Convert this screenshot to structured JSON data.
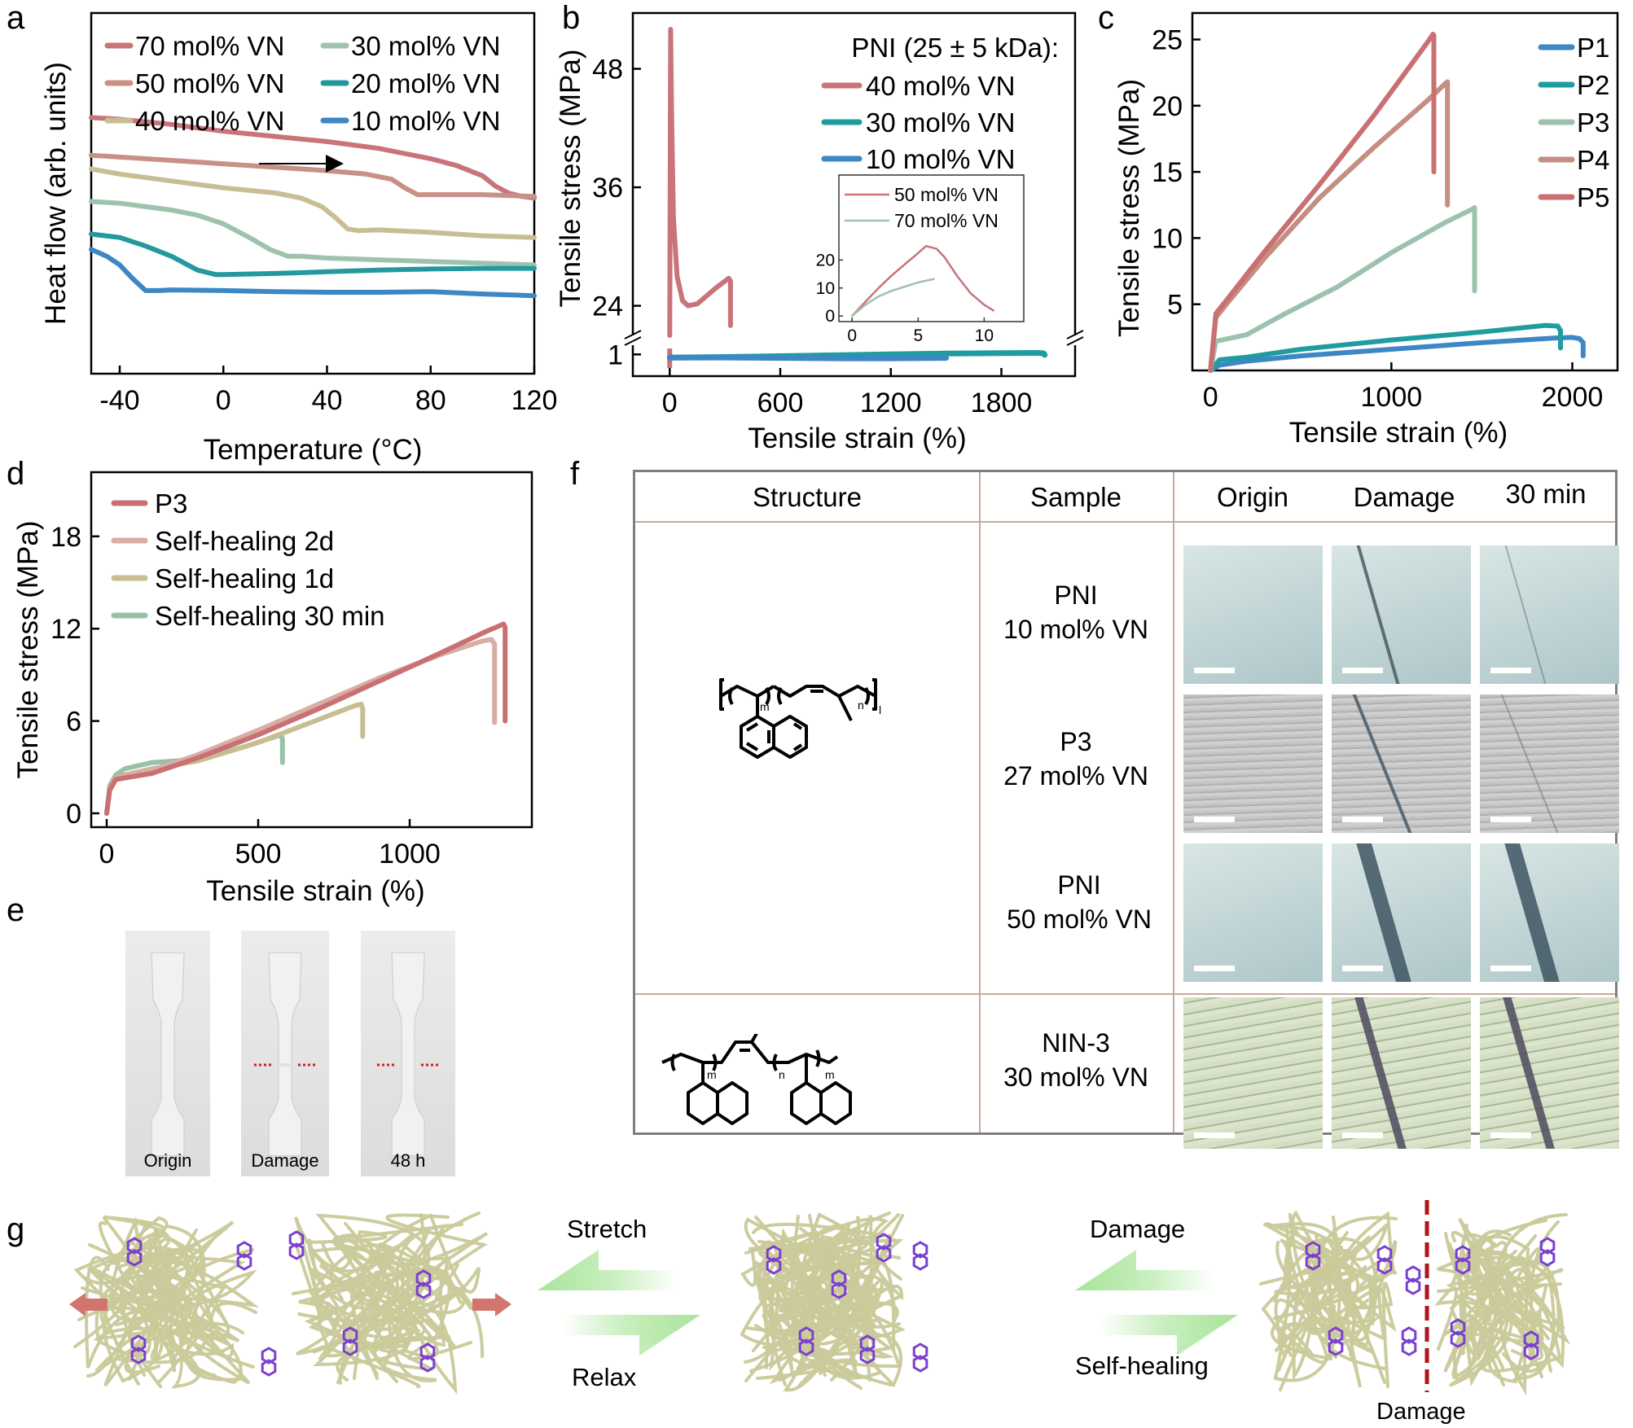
{
  "figure": {
    "panel_labels": [
      "a",
      "b",
      "c",
      "d",
      "e",
      "f",
      "g"
    ]
  },
  "chart_data": [
    {
      "id": "a",
      "type": "line",
      "title": "",
      "xlabel": "Temperature (°C)",
      "ylabel": "Heat flow (arb. units)",
      "xlim": [
        -51,
        120
      ],
      "ylim": [
        0,
        10
      ],
      "xticks": [
        -40,
        0,
        40,
        80,
        120
      ],
      "yticks": [],
      "grid": false,
      "legend_position": "top",
      "annotation": "heating direction arrow →",
      "series": [
        {
          "name": "70 mol% VN",
          "color": "#c9737a",
          "x": [
            -51,
            -40,
            -20,
            0,
            20,
            40,
            60,
            80,
            90,
            100,
            105,
            110,
            115,
            120
          ],
          "y": [
            7.0,
            6.95,
            6.8,
            6.6,
            6.45,
            6.3,
            6.1,
            5.8,
            5.6,
            5.3,
            5.0,
            4.8,
            4.7,
            4.65
          ]
        },
        {
          "name": "50 mol% VN",
          "color": "#c99085",
          "x": [
            -51,
            -20,
            0,
            20,
            40,
            55,
            65,
            70,
            75,
            80,
            100,
            120
          ],
          "y": [
            5.9,
            5.75,
            5.65,
            5.55,
            5.45,
            5.35,
            5.2,
            4.95,
            4.75,
            4.75,
            4.75,
            4.7
          ]
        },
        {
          "name": "40 mol% VN",
          "color": "#c9bd94",
          "x": [
            -51,
            -40,
            -20,
            0,
            20,
            30,
            38,
            43,
            48,
            52,
            60,
            80,
            100,
            120
          ],
          "y": [
            5.5,
            5.35,
            5.15,
            4.95,
            4.8,
            4.65,
            4.4,
            4.1,
            3.75,
            3.7,
            3.72,
            3.65,
            3.55,
            3.5
          ]
        },
        {
          "name": "30 mol% VN",
          "color": "#9dc3ae",
          "x": [
            -51,
            -40,
            -20,
            -10,
            0,
            10,
            18,
            25,
            30,
            40,
            60,
            80,
            100,
            120
          ],
          "y": [
            4.55,
            4.5,
            4.3,
            4.15,
            3.9,
            3.5,
            3.15,
            2.95,
            2.95,
            2.9,
            2.85,
            2.8,
            2.75,
            2.7
          ]
        },
        {
          "name": "20 mol% VN",
          "color": "#23999e",
          "x": [
            -51,
            -40,
            -30,
            -20,
            -10,
            -3,
            0,
            20,
            40,
            60,
            80,
            100,
            120
          ],
          "y": [
            3.6,
            3.5,
            3.25,
            2.95,
            2.55,
            2.42,
            2.42,
            2.45,
            2.5,
            2.55,
            2.58,
            2.6,
            2.6
          ]
        },
        {
          "name": "10 mol% VN",
          "color": "#3d87c4",
          "x": [
            -51,
            -45,
            -40,
            -35,
            -30,
            -25,
            -20,
            0,
            20,
            40,
            60,
            80,
            100,
            120
          ],
          "y": [
            3.15,
            2.95,
            2.7,
            2.3,
            1.95,
            1.95,
            1.97,
            1.95,
            1.92,
            1.9,
            1.9,
            1.92,
            1.85,
            1.8
          ]
        }
      ]
    },
    {
      "id": "b",
      "type": "line",
      "title": "",
      "xlabel": "Tensile strain (%)",
      "ylabel": "Tensile stress (MPa)",
      "xlim": [
        -200,
        2200
      ],
      "xticks": [
        0,
        600,
        1200,
        1800
      ],
      "yticks_lower": [
        1
      ],
      "yticks_upper": [
        24,
        36,
        48
      ],
      "axis_break": "between 1 and 24 MPa",
      "ylim_lower": [
        0,
        1.5
      ],
      "ylim_upper": [
        21,
        52
      ],
      "grid": false,
      "legend_title": "PNI (25 ± 5 kDa):",
      "legend_position": "top-right",
      "series": [
        {
          "name": "40 mol% VN",
          "color": "#c9737a",
          "x": [
            0,
            5,
            10,
            20,
            40,
            70,
            100,
            150,
            200,
            250,
            300,
            320,
            330,
            330
          ],
          "y": [
            21,
            52,
            44,
            33,
            27,
            24.5,
            24,
            24.2,
            25,
            25.8,
            26.5,
            26.8,
            26.5,
            22
          ]
        },
        {
          "name": "30 mol% VN",
          "color": "#1f9ca0",
          "x": [
            0,
            300,
            600,
            900,
            1200,
            1500,
            1800,
            2000,
            2030,
            2035
          ],
          "y": [
            0.85,
            0.88,
            0.92,
            0.96,
            1.0,
            1.04,
            1.06,
            1.07,
            1.05,
            0.98
          ]
        },
        {
          "name": "10 mol% VN",
          "color": "#3d87c4",
          "x": [
            0,
            300,
            600,
            900,
            1200,
            1500
          ],
          "y": [
            0.85,
            0.86,
            0.84,
            0.82,
            0.82,
            0.84
          ]
        }
      ],
      "inset": {
        "type": "line",
        "xlim": [
          -1,
          13
        ],
        "ylim": [
          -2,
          30
        ],
        "xticks": [
          0,
          5,
          10
        ],
        "yticks": [
          0,
          10,
          20
        ],
        "series": [
          {
            "name": "50 mol% VN",
            "color": "#c9737a",
            "x": [
              0,
              1,
              2,
              3,
              4,
              5,
              5.6,
              6.4,
              7,
              8,
              9,
              10,
              10.7
            ],
            "y": [
              0,
              5,
              10,
              14.5,
              18.5,
              22.5,
              25,
              24,
              21,
              14,
              8,
              4,
              2
            ]
          },
          {
            "name": "70 mol% VN",
            "color": "#9dc3ae",
            "x": [
              0,
              1,
              2,
              3,
              4,
              5,
              6,
              6.2
            ],
            "y": [
              0,
              4,
              7,
              9,
              10.5,
              12,
              13,
              13.2
            ]
          }
        ]
      }
    },
    {
      "id": "c",
      "type": "line",
      "title": "",
      "xlabel": "Tensile strain (%)",
      "ylabel": "Tensile stress (MPa)",
      "xlim": [
        -100,
        2250
      ],
      "ylim": [
        0,
        27
      ],
      "xticks": [
        0,
        1000,
        2000
      ],
      "yticks": [
        5,
        10,
        15,
        20,
        25
      ],
      "grid": false,
      "legend_position": "top-right",
      "series": [
        {
          "name": "P1",
          "color": "#3d87c4",
          "x": [
            0,
            50,
            200,
            500,
            1000,
            1500,
            1900,
            2000,
            2040,
            2060,
            2060
          ],
          "y": [
            0,
            0.4,
            0.7,
            1.1,
            1.6,
            2.1,
            2.45,
            2.5,
            2.4,
            2.1,
            1.1
          ]
        },
        {
          "name": "P2",
          "color": "#1f9ca0",
          "x": [
            0,
            50,
            200,
            500,
            1000,
            1500,
            1850,
            1920,
            1935,
            1935
          ],
          "y": [
            0,
            0.8,
            1.0,
            1.6,
            2.3,
            2.9,
            3.4,
            3.35,
            3.0,
            1.7
          ]
        },
        {
          "name": "P3",
          "color": "#9cc2ad",
          "x": [
            0,
            30,
            200,
            400,
            700,
            1000,
            1300,
            1450,
            1460,
            1460
          ],
          "y": [
            0,
            2.2,
            2.7,
            4.2,
            6.3,
            8.9,
            11.2,
            12.2,
            12.3,
            6.0
          ]
        },
        {
          "name": "P4",
          "color": "#c48e82",
          "x": [
            0,
            30,
            100,
            300,
            600,
            900,
            1200,
            1300,
            1310,
            1310
          ],
          "y": [
            0,
            4.0,
            5.2,
            8.5,
            13.0,
            16.8,
            20.4,
            21.7,
            21.8,
            12.5
          ]
        },
        {
          "name": "P5",
          "color": "#c97073",
          "x": [
            0,
            30,
            100,
            300,
            600,
            900,
            1200,
            1230,
            1235,
            1235
          ],
          "y": [
            0,
            4.3,
            5.5,
            9.0,
            14.0,
            19.2,
            24.8,
            25.4,
            25.3,
            15.0
          ]
        }
      ]
    },
    {
      "id": "d",
      "type": "line",
      "title": "",
      "xlabel": "Tensile strain (%)",
      "ylabel": "Tensile stress (MPa)",
      "xlim": [
        -20,
        1400
      ],
      "ylim": [
        -1,
        22
      ],
      "xticks": [
        0,
        500,
        1000
      ],
      "yticks": [
        0,
        6,
        12,
        18
      ],
      "grid": false,
      "legend_position": "top-left",
      "series": [
        {
          "name": "P3",
          "color": "#c97073",
          "x": [
            0,
            10,
            30,
            60,
            150,
            300,
            500,
            700,
            900,
            1100,
            1250,
            1310,
            1315,
            1315
          ],
          "y": [
            0,
            1.5,
            2.2,
            2.3,
            2.6,
            3.6,
            5.1,
            6.8,
            8.6,
            10.4,
            11.8,
            12.3,
            12.1,
            6.0
          ]
        },
        {
          "name": "Self-healing 2d",
          "color": "#d8ada4",
          "x": [
            0,
            10,
            30,
            60,
            150,
            300,
            500,
            700,
            900,
            1100,
            1240,
            1270,
            1280,
            1280
          ],
          "y": [
            0,
            1.6,
            2.3,
            2.5,
            2.8,
            3.8,
            5.4,
            7.1,
            8.8,
            10.3,
            11.2,
            11.3,
            11.0,
            5.9
          ]
        },
        {
          "name": "Self-healing 1d",
          "color": "#c9bd94",
          "x": [
            0,
            10,
            30,
            60,
            150,
            300,
            500,
            700,
            820,
            840,
            845,
            845
          ],
          "y": [
            0,
            1.6,
            2.3,
            2.5,
            2.9,
            3.4,
            4.6,
            6.1,
            7.0,
            7.1,
            6.8,
            5.0
          ]
        },
        {
          "name": "Self-healing 30 min",
          "color": "#97c2a8",
          "x": [
            0,
            10,
            30,
            60,
            150,
            300,
            450,
            560,
            575,
            580,
            580
          ],
          "y": [
            0,
            1.8,
            2.5,
            2.9,
            3.3,
            3.5,
            4.3,
            5.0,
            5.1,
            4.8,
            3.3
          ]
        }
      ]
    }
  ],
  "panel_e": {
    "photos": [
      {
        "caption": "Origin",
        "damaged": false,
        "marker": false
      },
      {
        "caption": "Damage",
        "damaged": true,
        "marker": true
      },
      {
        "caption": "48 h",
        "damaged": false,
        "marker": true
      }
    ],
    "marker_color": "#d21f1f"
  },
  "panel_f": {
    "headers": {
      "structure": "Structure",
      "sample": "Sample",
      "origin": "Origin",
      "damage": "Damage",
      "healed": "30 min"
    },
    "structures": {
      "pni": {
        "subscripts": [
          "m",
          "n",
          "l"
        ]
      },
      "nin": {
        "subscripts": [
          "m",
          "n",
          "m"
        ]
      }
    },
    "rows": [
      {
        "name": "PNI",
        "composition": "10 mol% VN",
        "tone": "blue-gray"
      },
      {
        "name": "P3",
        "composition": "27 mol% VN",
        "tone": "gray"
      },
      {
        "name": "PNI",
        "composition": "50 mol% VN",
        "tone": "blue-gray"
      },
      {
        "name": "NIN-3",
        "composition": "30 mol% VN",
        "tone": "green"
      }
    ]
  },
  "panel_g": {
    "arrow1": {
      "top_label": "Stretch",
      "bottom_label": "Relax"
    },
    "arrow2": {
      "top_label": "Damage",
      "bottom_label": "Self-healing"
    },
    "damage_line_label": "Damage",
    "colors": {
      "chain": "#c9c99a",
      "aromatic": "#7b3fd1",
      "arrow": "#b7eaa6",
      "force": "#d27570",
      "damage_line": "#b0141a"
    }
  }
}
